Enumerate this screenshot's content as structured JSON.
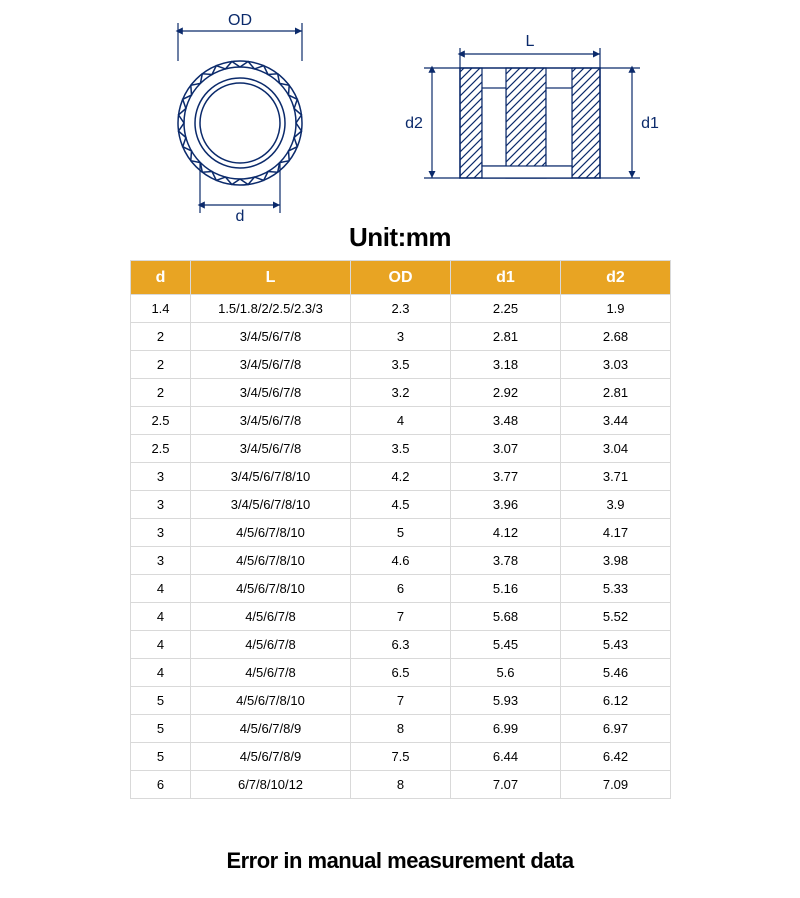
{
  "unit_label": "Unit:mm",
  "footer_note": "Error in manual measurement data",
  "diagrams": {
    "top_view": {
      "label_OD": "OD",
      "label_d": "d"
    },
    "side_view": {
      "label_L": "L",
      "label_d1": "d1",
      "label_d2": "d2"
    }
  },
  "colors": {
    "header_bg": "#e8a423",
    "header_text": "#ffffff",
    "border": "#d9d9d9",
    "diagram_stroke": "#0b2a6b"
  },
  "table": {
    "columns": [
      "d",
      "L",
      "OD",
      "d1",
      "d2"
    ],
    "rows": [
      [
        "1.4",
        "1.5/1.8/2/2.5/2.3/3",
        "2.3",
        "2.25",
        "1.9"
      ],
      [
        "2",
        "3/4/5/6/7/8",
        "3",
        "2.81",
        "2.68"
      ],
      [
        "2",
        "3/4/5/6/7/8",
        "3.5",
        "3.18",
        "3.03"
      ],
      [
        "2",
        "3/4/5/6/7/8",
        "3.2",
        "2.92",
        "2.81"
      ],
      [
        "2.5",
        "3/4/5/6/7/8",
        "4",
        "3.48",
        "3.44"
      ],
      [
        "2.5",
        "3/4/5/6/7/8",
        "3.5",
        "3.07",
        "3.04"
      ],
      [
        "3",
        "3/4/5/6/7/8/10",
        "4.2",
        "3.77",
        "3.71"
      ],
      [
        "3",
        "3/4/5/6/7/8/10",
        "4.5",
        "3.96",
        "3.9"
      ],
      [
        "3",
        "4/5/6/7/8/10",
        "5",
        "4.12",
        "4.17"
      ],
      [
        "3",
        "4/5/6/7/8/10",
        "4.6",
        "3.78",
        "3.98"
      ],
      [
        "4",
        "4/5/6/7/8/10",
        "6",
        "5.16",
        "5.33"
      ],
      [
        "4",
        "4/5/6/7/8",
        "7",
        "5.68",
        "5.52"
      ],
      [
        "4",
        "4/5/6/7/8",
        "6.3",
        "5.45",
        "5.43"
      ],
      [
        "4",
        "4/5/6/7/8",
        "6.5",
        "5.6",
        "5.46"
      ],
      [
        "5",
        "4/5/6/7/8/10",
        "7",
        "5.93",
        "6.12"
      ],
      [
        "5",
        "4/5/6/7/8/9",
        "8",
        "6.99",
        "6.97"
      ],
      [
        "5",
        "4/5/6/7/8/9",
        "7.5",
        "6.44",
        "6.42"
      ],
      [
        "6",
        "6/7/8/10/12",
        "8",
        "7.07",
        "7.09"
      ]
    ]
  }
}
